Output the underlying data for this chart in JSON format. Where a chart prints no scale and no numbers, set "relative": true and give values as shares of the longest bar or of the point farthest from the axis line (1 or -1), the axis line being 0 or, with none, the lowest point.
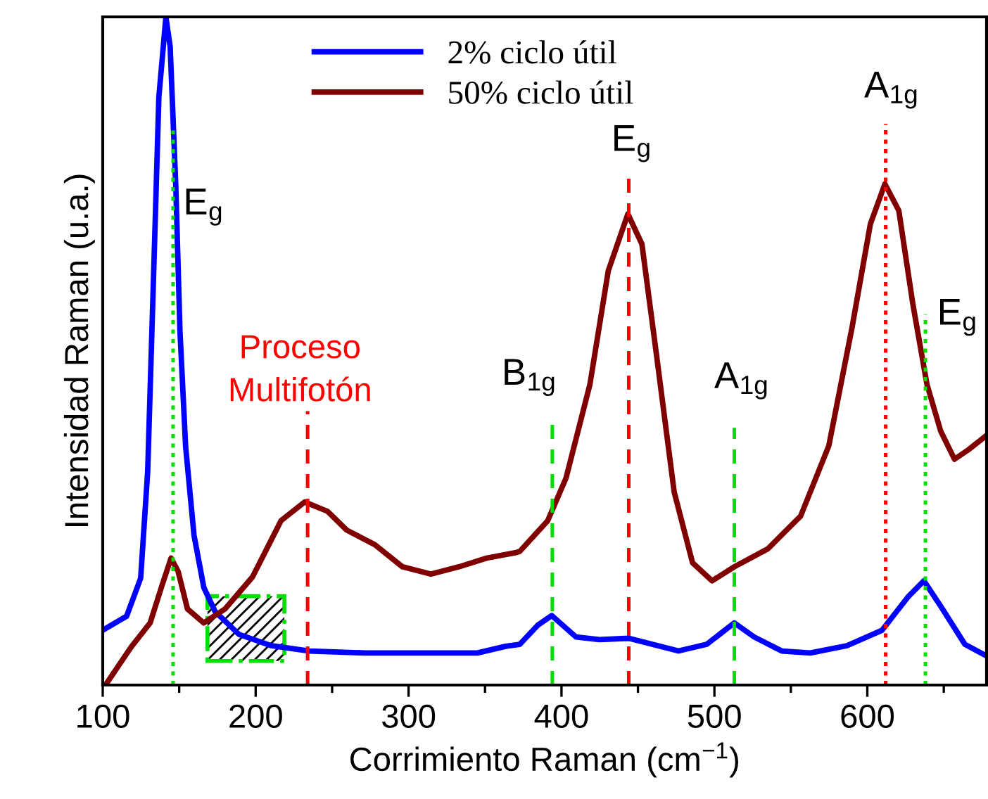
{
  "chart_data": {
    "type": "line",
    "relative": true,
    "xlabel": "Corrimiento Raman (cm$^{−1}$)",
    "ylabel": "Intensidad Raman (u.a.)",
    "xlim": [
      100,
      678
    ],
    "xticks": [
      100,
      200,
      300,
      400,
      500,
      600
    ],
    "grid": false,
    "legend": "top",
    "marker": "none",
    "line_style": "solid",
    "series": [
      {
        "name": "2% ciclo útil",
        "color": "#0000ff",
        "x": [
          100,
          115.6,
          124.8,
          129.4,
          134,
          136.7,
          141.3,
          144.1,
          147.8,
          150.5,
          154.2,
          159.7,
          166.1,
          173.5,
          189,
          210,
          235,
          271.7,
          308.4,
          345,
          363.5,
          372.7,
          384.7,
          393.6,
          409.5,
          424.8,
          444,
          476.5,
          495,
          513,
          526,
          544,
          562.7,
          586.7,
          609.6,
          627,
          637,
          648,
          663.8,
          677.6
        ],
        "values": [
          0.082,
          0.103,
          0.16,
          0.32,
          0.67,
          0.88,
          1.0,
          0.955,
          0.745,
          0.53,
          0.357,
          0.224,
          0.146,
          0.11,
          0.076,
          0.059,
          0.051,
          0.048,
          0.048,
          0.048,
          0.058,
          0.061,
          0.09,
          0.104,
          0.072,
          0.068,
          0.07,
          0.051,
          0.061,
          0.093,
          0.072,
          0.051,
          0.048,
          0.059,
          0.082,
          0.133,
          0.156,
          0.118,
          0.061,
          0.044
        ]
      },
      {
        "name": "50% ciclo útil",
        "color": "#800000",
        "x": [
          101.8,
          118.6,
          131,
          138.6,
          144.7,
          149.3,
          155.4,
          166,
          180,
          198,
          216.6,
          232,
          247,
          259.5,
          278,
          296,
          314.6,
          333,
          351,
          369.7,
          372.7,
          391,
          403,
          418.6,
          430.6,
          443.4,
          452.6,
          461.8,
          473.7,
          485.7,
          498.5,
          513,
          535,
          556.4,
          574.8,
          590,
          602,
          611.5,
          620.6,
          629.8,
          639,
          648,
          657,
          666,
          677.6
        ],
        "values": [
          0.0,
          0.057,
          0.093,
          0.148,
          0.19,
          0.17,
          0.114,
          0.093,
          0.114,
          0.162,
          0.246,
          0.274,
          0.26,
          0.232,
          0.21,
          0.177,
          0.166,
          0.177,
          0.19,
          0.198,
          0.2,
          0.246,
          0.31,
          0.45,
          0.62,
          0.705,
          0.66,
          0.5,
          0.289,
          0.183,
          0.156,
          0.177,
          0.204,
          0.253,
          0.358,
          0.535,
          0.69,
          0.75,
          0.71,
          0.57,
          0.45,
          0.38,
          0.338,
          0.352,
          0.373
        ]
      }
    ],
    "ref_lines": [
      {
        "axis": "x",
        "value": 146,
        "color": "#00dd00",
        "line_style": "dotted",
        "label": "E$_{g}$"
      },
      {
        "axis": "x",
        "value": 234,
        "color": "#ff0000",
        "line_style": "dashed",
        "label": "Proceso\nMultifotón"
      },
      {
        "axis": "x",
        "value": 394,
        "color": "#00dd00",
        "line_style": "dashed",
        "label": "B$_{1g}$"
      },
      {
        "axis": "x",
        "value": 444,
        "color": "#ff0000",
        "line_style": "dashed",
        "label": "E$_{g}$"
      },
      {
        "axis": "x",
        "value": 513,
        "color": "#00dd00",
        "line_style": "dashed",
        "label": "A$_{1g}$"
      },
      {
        "axis": "x",
        "value": 612,
        "color": "#ff0000",
        "line_style": "dotted",
        "label": "A$_{1g}$"
      },
      {
        "axis": "x",
        "value": 638,
        "color": "#00dd00",
        "line_style": "dotted",
        "label": "E$_{g}$"
      }
    ]
  }
}
